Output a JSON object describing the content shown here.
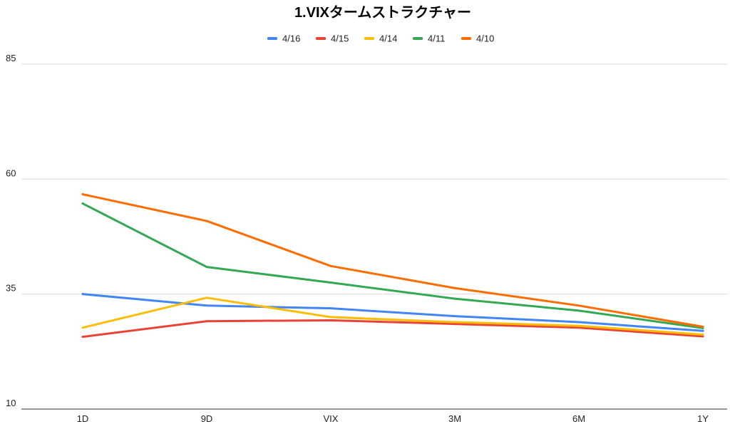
{
  "chart_data": {
    "type": "line",
    "title": "1.VIXタームストラクチャー",
    "xlabel": "",
    "ylabel": "",
    "categories": [
      "1D",
      "9D",
      "VIX",
      "3M",
      "6M",
      "1Y"
    ],
    "yticks": [
      "10",
      "35",
      "60",
      "85"
    ],
    "ylim": [
      10,
      85
    ],
    "grid": true,
    "legend_position": "top",
    "series": [
      {
        "name": "4/16",
        "color": "#4285f4",
        "values": [
          35.0,
          32.5,
          31.9,
          30.2,
          28.9,
          27.0
        ]
      },
      {
        "name": "4/15",
        "color": "#ea4335",
        "values": [
          25.7,
          29.1,
          29.3,
          28.5,
          27.7,
          25.8
        ]
      },
      {
        "name": "4/14",
        "color": "#fbbc04",
        "values": [
          27.7,
          34.2,
          30.0,
          28.9,
          28.1,
          26.2
        ]
      },
      {
        "name": "4/11",
        "color": "#34a853",
        "values": [
          54.7,
          40.9,
          37.5,
          34.0,
          31.4,
          27.6
        ]
      },
      {
        "name": "4/10",
        "color": "#ff6d01",
        "values": [
          56.7,
          50.9,
          41.1,
          36.3,
          32.5,
          27.9
        ]
      }
    ]
  }
}
